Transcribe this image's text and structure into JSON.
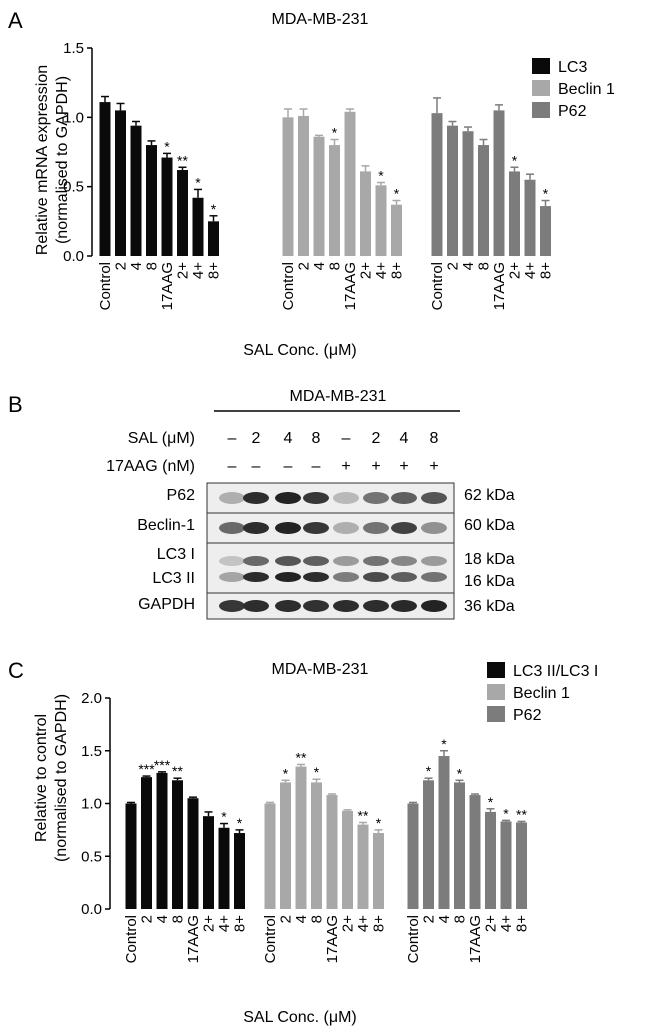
{
  "panels": {
    "a": {
      "letter": "A"
    },
    "b": {
      "letter": "B"
    },
    "c": {
      "letter": "C"
    }
  },
  "blot": {
    "title": "MDA-MB-231",
    "sal_label": "SAL (μM)",
    "sal_values": [
      "–",
      "2",
      "4",
      "8",
      "–",
      "2",
      "4",
      "8"
    ],
    "aag_label": "17AAG (nM)",
    "aag_values": [
      "–",
      "–",
      "–",
      "–",
      "+",
      "+",
      "+",
      "+"
    ],
    "rows": [
      {
        "name": "P62",
        "size": "62 kDa",
        "bands": [
          0.25,
          0.9,
          0.95,
          0.85,
          0.2,
          0.55,
          0.65,
          0.7
        ]
      },
      {
        "name": "Beclin-1",
        "size": "60 kDa",
        "bands": [
          0.6,
          0.9,
          0.95,
          0.85,
          0.25,
          0.55,
          0.8,
          0.4
        ]
      },
      {
        "name": "LC3 I",
        "size": "18 kDa",
        "bands": [
          0.15,
          0.6,
          0.7,
          0.65,
          0.35,
          0.55,
          0.45,
          0.35
        ]
      },
      {
        "name": "LC3 II",
        "size": "16 kDa",
        "bands": [
          0.3,
          0.9,
          0.95,
          0.9,
          0.5,
          0.75,
          0.65,
          0.55
        ]
      },
      {
        "name": "GAPDH",
        "size": "36 kDa",
        "bands": [
          0.85,
          0.9,
          0.9,
          0.88,
          0.9,
          0.9,
          0.92,
          0.95
        ]
      }
    ]
  },
  "chart_data": [
    {
      "type": "bar",
      "title": "MDA-MB-231",
      "xlabel": "SAL Conc. (μM)",
      "ylabel": "Relative mRNA expression\n(normalised to GAPDH)",
      "ylim": [
        0,
        1.5
      ],
      "yticks": [
        "0.0",
        "0.5",
        "1.0",
        "1.5"
      ],
      "categories": [
        "Control",
        "2",
        "4",
        "8",
        "17AAG",
        "2+",
        "4+",
        "8+"
      ],
      "legend_position": "top-right",
      "series": [
        {
          "name": "LC3",
          "color": "#0a0a0a",
          "values": [
            1.11,
            1.05,
            0.94,
            0.8,
            0.71,
            0.62,
            0.42,
            0.25
          ],
          "errors": [
            0.04,
            0.05,
            0.03,
            0.03,
            0.03,
            0.02,
            0.06,
            0.04
          ],
          "stars": [
            "",
            "",
            "",
            "",
            "*",
            "**",
            "*",
            "*"
          ]
        },
        {
          "name": "Beclin 1",
          "color": "#a8a8a8",
          "values": [
            1.0,
            1.01,
            0.86,
            0.8,
            1.04,
            0.61,
            0.51,
            0.37
          ],
          "errors": [
            0.06,
            0.05,
            0.01,
            0.04,
            0.02,
            0.04,
            0.02,
            0.03
          ],
          "stars": [
            "",
            "",
            "",
            "*",
            "",
            "",
            "*",
            "*"
          ]
        },
        {
          "name": "P62",
          "color": "#7c7c7c",
          "values": [
            1.03,
            0.94,
            0.9,
            0.8,
            1.05,
            0.61,
            0.55,
            0.36
          ],
          "errors": [
            0.11,
            0.03,
            0.03,
            0.04,
            0.04,
            0.03,
            0.04,
            0.04
          ],
          "stars": [
            "",
            "",
            "",
            "",
            "",
            "*",
            "",
            "*"
          ]
        }
      ]
    },
    {
      "type": "bar",
      "title": "MDA-MB-231",
      "xlabel": "SAL Conc. (μM)",
      "ylabel": "Relative to control\n(normalised to GAPDH)",
      "ylim": [
        0,
        2.0
      ],
      "yticks": [
        "0.0",
        "0.5",
        "1.0",
        "1.5",
        "2.0"
      ],
      "categories": [
        "Control",
        "2",
        "4",
        "8",
        "17AAG",
        "2+",
        "4+",
        "8+"
      ],
      "legend_position": "top-right",
      "series": [
        {
          "name": "LC3 II/LC3 I",
          "color": "#0a0a0a",
          "values": [
            1.0,
            1.25,
            1.29,
            1.22,
            1.05,
            0.88,
            0.77,
            0.72
          ],
          "errors": [
            0.01,
            0.01,
            0.01,
            0.02,
            0.01,
            0.04,
            0.04,
            0.03
          ],
          "stars": [
            "",
            "***",
            "***",
            "**",
            "",
            "",
            "*",
            "*"
          ]
        },
        {
          "name": "Beclin 1",
          "color": "#a8a8a8",
          "values": [
            1.0,
            1.2,
            1.35,
            1.2,
            1.08,
            0.93,
            0.8,
            0.72
          ],
          "errors": [
            0.01,
            0.02,
            0.02,
            0.03,
            0.01,
            0.01,
            0.02,
            0.03
          ],
          "stars": [
            "",
            "*",
            "**",
            "*",
            "",
            "",
            "**",
            "*"
          ]
        },
        {
          "name": "P62",
          "color": "#7c7c7c",
          "values": [
            1.0,
            1.22,
            1.45,
            1.2,
            1.08,
            0.92,
            0.83,
            0.82
          ],
          "errors": [
            0.01,
            0.02,
            0.05,
            0.02,
            0.01,
            0.03,
            0.01,
            0.01
          ],
          "stars": [
            "",
            "*",
            "*",
            "*",
            "",
            "*",
            "*",
            "**"
          ]
        }
      ]
    }
  ]
}
